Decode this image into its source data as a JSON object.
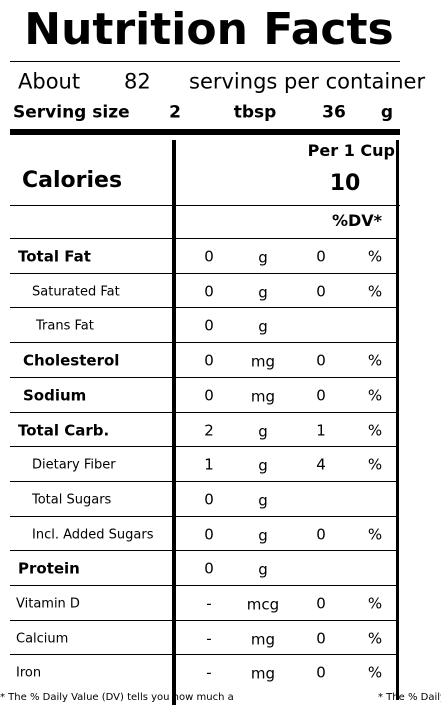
{
  "title": "Nutrition Facts",
  "servings": {
    "prefix": "About",
    "count": "82",
    "suffix": "servings per container"
  },
  "serving_size": {
    "label": "Serving size",
    "amount": "2",
    "unit": "tbsp",
    "weight": "36",
    "weight_unit": "g"
  },
  "per_label": "Per 1 Cup",
  "calories": {
    "label": "Calories",
    "value": "10"
  },
  "dv_header": "%DV*",
  "rows": [
    {
      "label": "Total Fat",
      "amount": "0",
      "unit": "g",
      "dv": "0",
      "dv_unit": "%"
    },
    {
      "label": "Saturated Fat",
      "amount": "0",
      "unit": "g",
      "dv": "0",
      "dv_unit": "%"
    },
    {
      "label": "Trans Fat",
      "amount": "0",
      "unit": "g"
    },
    {
      "label": "Cholesterol",
      "amount": "0",
      "unit": "mg",
      "dv": "0",
      "dv_unit": "%"
    },
    {
      "label": "Sodium",
      "amount": "0",
      "unit": "mg",
      "dv": "0",
      "dv_unit": "%"
    },
    {
      "label": "Total Carb.",
      "amount": "2",
      "unit": "g",
      "dv": "1",
      "dv_unit": "%"
    },
    {
      "label": "Dietary Fiber",
      "amount": "1",
      "unit": "g",
      "dv": "4",
      "dv_unit": "%"
    },
    {
      "label": "Total Sugars",
      "amount": "0",
      "unit": "g"
    },
    {
      "label": "Incl. Added Sugars",
      "amount": "0",
      "unit": "g",
      "dv": "0",
      "dv_unit": "%"
    },
    {
      "label": "Protein",
      "amount": "0",
      "unit": "g"
    },
    {
      "label": "Vitamin D",
      "amount": "-",
      "unit": "mcg",
      "dv": "0",
      "dv_unit": "%"
    },
    {
      "label": "Calcium",
      "amount": "-",
      "unit": "mg",
      "dv": "0",
      "dv_unit": "%"
    },
    {
      "label": "Iron",
      "amount": "-",
      "unit": "mg",
      "dv": "0",
      "dv_unit": "%"
    }
  ],
  "footnote": "* The % Daily Value (DV) tells you how much a",
  "footnote_right": "* The % Daily"
}
